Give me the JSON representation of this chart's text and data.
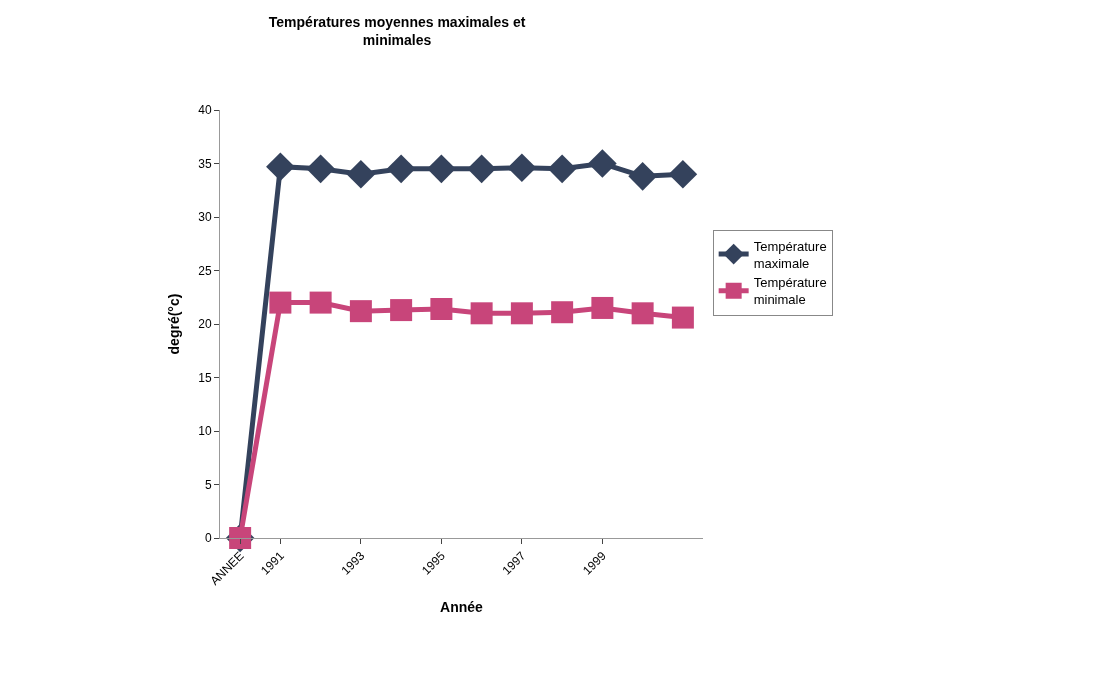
{
  "chart_data": {
    "type": "line",
    "title": "Températures moyennes maximales et minimales",
    "xlabel": "Année",
    "ylabel": "degré(°c)",
    "categories": [
      "ANNEE",
      "1991",
      null,
      "1993",
      null,
      "1995",
      null,
      "1997",
      null,
      "1999",
      null,
      null
    ],
    "series": [
      {
        "name": "Température maximale",
        "color": "#34425c",
        "marker": "diamond",
        "values": [
          0,
          34.7,
          34.5,
          34,
          34.5,
          34.5,
          34.5,
          34.6,
          34.5,
          35,
          33.8,
          34
        ]
      },
      {
        "name": "Température minimale",
        "color": "#c8457a",
        "marker": "square",
        "values": [
          0,
          22,
          22,
          21.2,
          21.3,
          21.4,
          21,
          21,
          21.1,
          21.5,
          21,
          20.6
        ]
      }
    ],
    "ylim": [
      0,
      40
    ],
    "yticks": [
      0,
      5,
      10,
      15,
      20,
      25,
      30,
      35,
      40
    ],
    "legend": "right"
  }
}
